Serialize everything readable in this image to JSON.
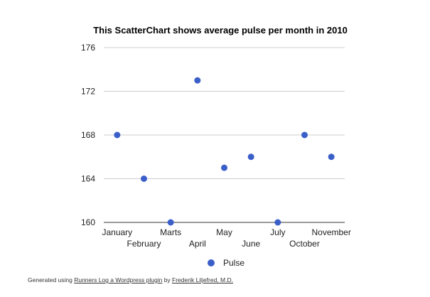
{
  "chart_data": {
    "type": "scatter",
    "title": "This ScatterChart shows average pulse per month in 2010",
    "categories": [
      "January",
      "February",
      "Marts",
      "April",
      "May",
      "June",
      "July",
      "October",
      "November"
    ],
    "series": [
      {
        "name": "Pulse",
        "values": [
          168,
          164,
          160,
          173,
          165,
          166,
          160,
          168,
          166
        ]
      }
    ],
    "yticks": [
      160,
      164,
      168,
      172,
      176
    ],
    "ylim": [
      160,
      176
    ],
    "grid": true,
    "legend": "bottom",
    "color": "#3b5fc9"
  },
  "footer": {
    "prefix": "Generated using ",
    "plugin_link": "Runners Log a Wordpress plugin",
    "middle": " by ",
    "author_link": "Frederik Liljefred, M.D."
  }
}
